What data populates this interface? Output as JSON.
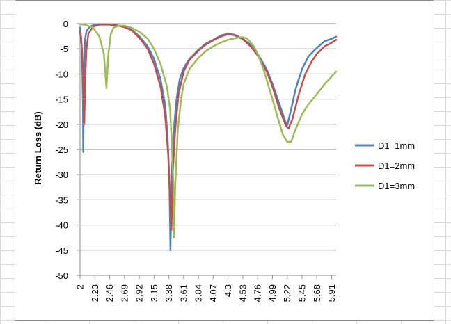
{
  "chart_data": {
    "type": "line",
    "title": "",
    "xlabel": "",
    "ylabel": "Return Loss (dB)",
    "xlim": [
      2.0,
      5.98
    ],
    "ylim": [
      -50,
      0
    ],
    "yticks": [
      0,
      -5,
      -10,
      -15,
      -20,
      -25,
      -30,
      -35,
      -40,
      -45,
      -50
    ],
    "xticks": [
      "2",
      "2.23",
      "2.46",
      "2.69",
      "2.92",
      "3.15",
      "3.38",
      "3.61",
      "3.84",
      "4.07",
      "4.3",
      "4.53",
      "4.76",
      "4.99",
      "5.22",
      "5.45",
      "5.68",
      "5.91"
    ],
    "grid": "horizontal",
    "legend_position": "right",
    "series": [
      {
        "name": "D1=1mm",
        "color": "#4f81bd",
        "points": [
          [
            2.0,
            -0.8
          ],
          [
            2.02,
            -3
          ],
          [
            2.035,
            -8
          ],
          [
            2.045,
            -16
          ],
          [
            2.05,
            -25.5
          ],
          [
            2.057,
            -15
          ],
          [
            2.065,
            -8
          ],
          [
            2.08,
            -3
          ],
          [
            2.1,
            -1.5
          ],
          [
            2.15,
            -0.6
          ],
          [
            2.23,
            -0.2
          ],
          [
            2.35,
            -0.1
          ],
          [
            2.5,
            -0.2
          ],
          [
            2.69,
            -0.6
          ],
          [
            2.8,
            -1.2
          ],
          [
            2.92,
            -2.5
          ],
          [
            3.05,
            -4.5
          ],
          [
            3.15,
            -7
          ],
          [
            3.25,
            -11
          ],
          [
            3.32,
            -16
          ],
          [
            3.36,
            -22
          ],
          [
            3.39,
            -32
          ],
          [
            3.405,
            -45
          ],
          [
            3.42,
            -32
          ],
          [
            3.45,
            -22
          ],
          [
            3.5,
            -15
          ],
          [
            3.55,
            -11
          ],
          [
            3.61,
            -8.8
          ],
          [
            3.7,
            -7
          ],
          [
            3.84,
            -5.2
          ],
          [
            3.95,
            -4
          ],
          [
            4.07,
            -3.2
          ],
          [
            4.2,
            -2.3
          ],
          [
            4.3,
            -2
          ],
          [
            4.4,
            -2.2
          ],
          [
            4.53,
            -3
          ],
          [
            4.65,
            -4.2
          ],
          [
            4.76,
            -6
          ],
          [
            4.9,
            -9
          ],
          [
            4.99,
            -12
          ],
          [
            5.1,
            -16
          ],
          [
            5.19,
            -19.5
          ],
          [
            5.22,
            -20.2
          ],
          [
            5.28,
            -17
          ],
          [
            5.35,
            -13
          ],
          [
            5.45,
            -9
          ],
          [
            5.55,
            -6.5
          ],
          [
            5.68,
            -4.8
          ],
          [
            5.8,
            -3.5
          ],
          [
            5.91,
            -3
          ],
          [
            5.98,
            -2.6
          ]
        ]
      },
      {
        "name": "D1=2mm",
        "color": "#c0504d",
        "points": [
          [
            2.0,
            -1.5
          ],
          [
            2.03,
            -5
          ],
          [
            2.05,
            -11
          ],
          [
            2.065,
            -20
          ],
          [
            2.08,
            -11
          ],
          [
            2.1,
            -5
          ],
          [
            2.13,
            -2
          ],
          [
            2.2,
            -0.6
          ],
          [
            2.3,
            -0.2
          ],
          [
            2.46,
            -0.2
          ],
          [
            2.6,
            -0.4
          ],
          [
            2.69,
            -0.7
          ],
          [
            2.8,
            -1.3
          ],
          [
            2.92,
            -2.8
          ],
          [
            3.05,
            -5
          ],
          [
            3.15,
            -8
          ],
          [
            3.25,
            -12.5
          ],
          [
            3.32,
            -18
          ],
          [
            3.37,
            -26
          ],
          [
            3.39,
            -32
          ],
          [
            3.42,
            -41
          ],
          [
            3.44,
            -30
          ],
          [
            3.48,
            -21
          ],
          [
            3.53,
            -14
          ],
          [
            3.61,
            -9.5
          ],
          [
            3.7,
            -7.2
          ],
          [
            3.84,
            -5.4
          ],
          [
            3.95,
            -4.2
          ],
          [
            4.07,
            -3.3
          ],
          [
            4.2,
            -2.5
          ],
          [
            4.3,
            -2.1
          ],
          [
            4.4,
            -2.3
          ],
          [
            4.53,
            -3.1
          ],
          [
            4.65,
            -4.5
          ],
          [
            4.76,
            -6.3
          ],
          [
            4.9,
            -9.5
          ],
          [
            4.99,
            -12.5
          ],
          [
            5.1,
            -17
          ],
          [
            5.2,
            -20.3
          ],
          [
            5.24,
            -20.8
          ],
          [
            5.3,
            -19
          ],
          [
            5.4,
            -14
          ],
          [
            5.5,
            -10
          ],
          [
            5.6,
            -7.5
          ],
          [
            5.68,
            -6
          ],
          [
            5.8,
            -4.5
          ],
          [
            5.91,
            -3.8
          ],
          [
            5.98,
            -3.2
          ]
        ]
      },
      {
        "name": "D1=3mm",
        "color": "#9bbb59",
        "points": [
          [
            2.0,
            -0.1
          ],
          [
            2.1,
            -0.3
          ],
          [
            2.2,
            -0.8
          ],
          [
            2.3,
            -2.5
          ],
          [
            2.37,
            -6
          ],
          [
            2.41,
            -12.8
          ],
          [
            2.44,
            -6
          ],
          [
            2.48,
            -2
          ],
          [
            2.52,
            -0.8
          ],
          [
            2.6,
            -0.4
          ],
          [
            2.69,
            -0.4
          ],
          [
            2.8,
            -0.8
          ],
          [
            2.92,
            -1.6
          ],
          [
            3.05,
            -3
          ],
          [
            3.15,
            -5
          ],
          [
            3.25,
            -8
          ],
          [
            3.35,
            -12.5
          ],
          [
            3.4,
            -17
          ],
          [
            3.43,
            -25
          ],
          [
            3.45,
            -32
          ],
          [
            3.46,
            -42.5
          ],
          [
            3.48,
            -32
          ],
          [
            3.52,
            -21
          ],
          [
            3.57,
            -15
          ],
          [
            3.61,
            -12
          ],
          [
            3.7,
            -9
          ],
          [
            3.84,
            -6.8
          ],
          [
            3.95,
            -5.5
          ],
          [
            4.07,
            -4.5
          ],
          [
            4.2,
            -3.7
          ],
          [
            4.3,
            -3.2
          ],
          [
            4.45,
            -2.8
          ],
          [
            4.53,
            -2.7
          ],
          [
            4.6,
            -3
          ],
          [
            4.7,
            -4.5
          ],
          [
            4.76,
            -6
          ],
          [
            4.85,
            -9
          ],
          [
            4.92,
            -12
          ],
          [
            4.99,
            -15
          ],
          [
            5.08,
            -19
          ],
          [
            5.15,
            -22
          ],
          [
            5.22,
            -23.5
          ],
          [
            5.28,
            -23.5
          ],
          [
            5.35,
            -21
          ],
          [
            5.45,
            -18
          ],
          [
            5.55,
            -16
          ],
          [
            5.68,
            -14
          ],
          [
            5.8,
            -12
          ],
          [
            5.91,
            -10.5
          ],
          [
            5.98,
            -9.5
          ]
        ]
      }
    ]
  }
}
